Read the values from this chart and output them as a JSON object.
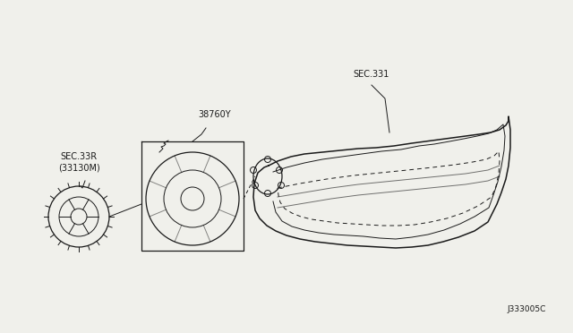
{
  "bg_color": "#f0f0eb",
  "line_color": "#1a1a1a",
  "title_code": "J333005C",
  "label_38760Y": "38760Y",
  "label_sec331": "SEC.331",
  "label_sec332": "SEC.33R\n(33130M)",
  "label_color": "#1a1a1a",
  "fig_width": 6.4,
  "fig_height": 3.72,
  "dpi": 100
}
